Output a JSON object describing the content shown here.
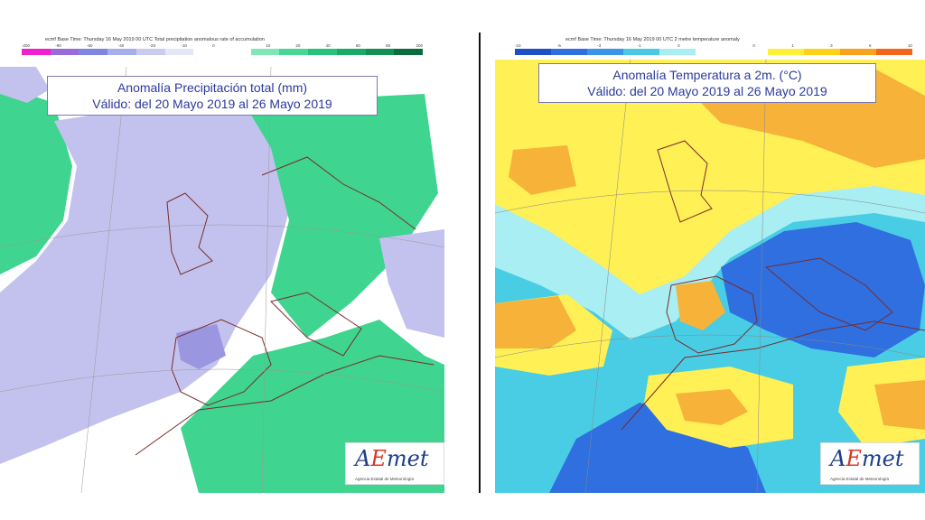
{
  "left": {
    "header": "ecmf  Base Time: Thursday 16 May 2019 00 UTC Total precipitation anomalous rate of accumulation",
    "legend_ticks": [
      "-200",
      "-80",
      "-60",
      "-40",
      "-20",
      "-10",
      "0",
      "",
      "10",
      "20",
      "40",
      "60",
      "80",
      "200"
    ],
    "legend_colors": [
      "#f020d0",
      "#9a6ad8",
      "#7f86e0",
      "#a8aee8",
      "#c9ccef",
      "#e4e6f7",
      "#ffffff",
      "#ffffff",
      "#7fe6b8",
      "#46d695",
      "#24c27a",
      "#1aaa68",
      "#128f55",
      "#0b6d3d"
    ],
    "title_line1": "Anomalía Precipitación total (mm)",
    "title_line2": "Válido: del 20 Mayo 2019 al 26 Mayo 2019",
    "logo_main_a": "A",
    "logo_main_e": "E",
    "logo_main_rest": "met",
    "logo_sub": "Agencia Estatal de Meteorología"
  },
  "right": {
    "header": "ecmf  Base Time: Thursday 16 May 2019 00 UTC 2 metre temperature anomaly",
    "legend_ticks": [
      "-10",
      "-6",
      "-3",
      "-1",
      "0",
      "",
      "0",
      "1",
      "3",
      "6",
      "10"
    ],
    "legend_colors": [
      "#1f4fc6",
      "#2f6fe0",
      "#3b93ea",
      "#49c9e2",
      "#a8eef2",
      "#ffffff",
      "#ffffff",
      "#ffef3a",
      "#ffd21a",
      "#f9a21e",
      "#f2661c"
    ],
    "title_line1": "Anomalía Temperatura a 2m. (°C)",
    "title_line2": "Válido: del 20 Mayo 2019 al 26 Mayo 2019",
    "logo_main_a": "A",
    "logo_main_e": "E",
    "logo_main_rest": "met",
    "logo_sub": "Agencia Estatal de Meteorología"
  },
  "colors": {
    "precip_positive": "#3fd48f",
    "precip_negative": "#c3c2ef",
    "temp_warm": "#fff056",
    "temp_warmer": "#f7b23a",
    "temp_cool": "#49cde4",
    "temp_cold": "#2f6fe0",
    "title_text": "#2a3a9a"
  }
}
